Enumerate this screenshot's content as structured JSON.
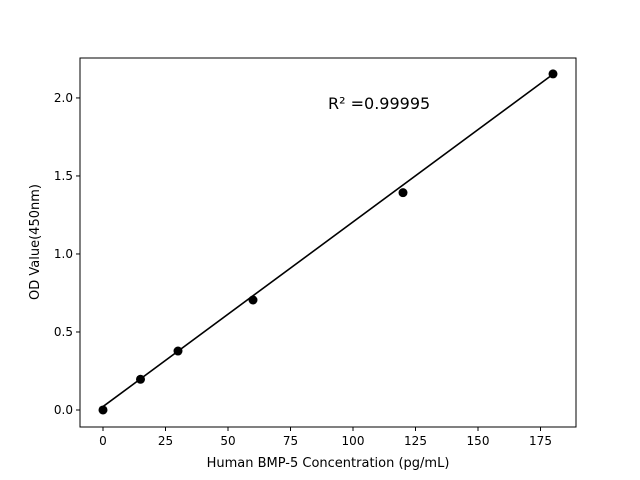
{
  "chart_data": {
    "type": "scatter",
    "title": "",
    "xlabel": "Human BMP-5 Concentration (pg/mL)",
    "ylabel": "OD Value(450nm)",
    "xlim": [
      -9.2,
      189.2
    ],
    "ylim": [
      -0.109,
      2.256
    ],
    "xticks": [
      0,
      25,
      50,
      75,
      100,
      125,
      150,
      175
    ],
    "xtick_labels": [
      "0",
      "25",
      "50",
      "75",
      "100",
      "125",
      "150",
      "175"
    ],
    "yticks": [
      0.0,
      0.5,
      1.0,
      1.5,
      2.0
    ],
    "ytick_labels": [
      "0.0",
      "0.5",
      "1.0",
      "1.5",
      "2.0"
    ],
    "grid": false,
    "points": {
      "x": [
        0,
        15,
        30,
        60,
        120,
        180
      ],
      "y": [
        0.0,
        0.197,
        0.378,
        0.705,
        1.393,
        2.154
      ]
    },
    "fit_line": {
      "x": [
        0,
        180
      ],
      "y": [
        0.022,
        2.152
      ]
    },
    "annotation": {
      "text": "R² =0.99995",
      "x": 90,
      "y": 1.93
    },
    "colors": {
      "points": "#000000",
      "line": "#000000"
    }
  }
}
